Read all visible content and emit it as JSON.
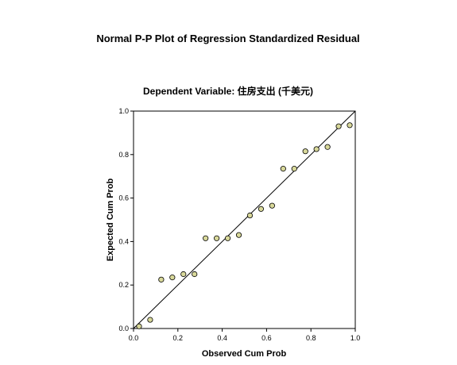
{
  "chart_data": {
    "type": "scatter",
    "title": "Normal P-P Plot of Regression Standardized Residual",
    "subtitle": "Dependent Variable: 住房支出 (千美元)",
    "xlabel": "Observed Cum Prob",
    "ylabel": "Expected Cum Prob",
    "xlim": [
      0.0,
      1.0
    ],
    "ylim": [
      0.0,
      1.0
    ],
    "xticks": [
      "0.0",
      "0.2",
      "0.4",
      "0.6",
      "0.8",
      "1.0"
    ],
    "yticks": [
      "0.0",
      "0.2",
      "0.4",
      "0.6",
      "0.8",
      "1.0"
    ],
    "reference_line": {
      "from": [
        0,
        0
      ],
      "to": [
        1,
        1
      ]
    },
    "grid": false,
    "marker_color": "#d8d89a",
    "points": [
      {
        "x": 0.025,
        "y": 0.01
      },
      {
        "x": 0.075,
        "y": 0.04
      },
      {
        "x": 0.125,
        "y": 0.225
      },
      {
        "x": 0.175,
        "y": 0.235
      },
      {
        "x": 0.225,
        "y": 0.25
      },
      {
        "x": 0.275,
        "y": 0.25
      },
      {
        "x": 0.325,
        "y": 0.415
      },
      {
        "x": 0.375,
        "y": 0.415
      },
      {
        "x": 0.425,
        "y": 0.415
      },
      {
        "x": 0.475,
        "y": 0.43
      },
      {
        "x": 0.525,
        "y": 0.52
      },
      {
        "x": 0.575,
        "y": 0.55
      },
      {
        "x": 0.625,
        "y": 0.565
      },
      {
        "x": 0.675,
        "y": 0.735
      },
      {
        "x": 0.725,
        "y": 0.735
      },
      {
        "x": 0.775,
        "y": 0.815
      },
      {
        "x": 0.825,
        "y": 0.825
      },
      {
        "x": 0.875,
        "y": 0.835
      },
      {
        "x": 0.925,
        "y": 0.93
      },
      {
        "x": 0.975,
        "y": 0.935
      }
    ]
  }
}
